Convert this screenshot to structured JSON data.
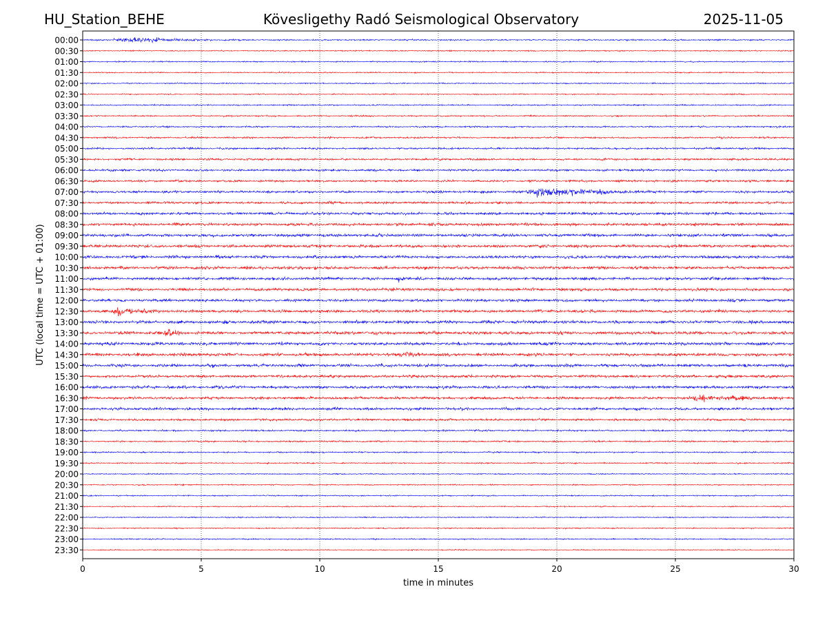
{
  "header": {
    "station": "HU_Station_BEHE",
    "observatory": "Kövesligethy Radó Seismological Observatory",
    "date": "2025-11-05"
  },
  "chart_data": {
    "type": "line",
    "title": "Kövesligethy Radó Seismological Observatory",
    "xlabel": "time in minutes",
    "ylabel": "UTC (local time = UTC + 01:00)",
    "xlim": [
      0,
      30
    ],
    "xticks": [
      0,
      5,
      10,
      15,
      20,
      25,
      30
    ],
    "xtick_labels": [
      "0",
      "5",
      "10",
      "15",
      "20",
      "25",
      "30"
    ],
    "grid": "vertical dotted",
    "row_labels": [
      "00:00",
      "00:30",
      "01:00",
      "01:30",
      "02:00",
      "02:30",
      "03:00",
      "03:30",
      "04:00",
      "04:30",
      "05:00",
      "05:30",
      "06:00",
      "06:30",
      "07:00",
      "07:30",
      "08:00",
      "08:30",
      "09:00",
      "09:30",
      "10:00",
      "10:30",
      "11:00",
      "11:30",
      "12:00",
      "12:30",
      "13:00",
      "13:30",
      "14:00",
      "14:30",
      "15:00",
      "15:30",
      "16:00",
      "16:30",
      "17:00",
      "17:30",
      "18:00",
      "18:30",
      "19:00",
      "19:30",
      "20:00",
      "20:30",
      "21:00",
      "21:30",
      "22:00",
      "22:30",
      "23:00",
      "23:30"
    ],
    "colors": [
      "#0000ff",
      "#ff0000"
    ],
    "noise_levels": [
      1.2,
      1.0,
      1.0,
      1.0,
      1.0,
      1.0,
      1.1,
      1.2,
      1.3,
      1.5,
      1.6,
      1.7,
      1.8,
      1.8,
      2.0,
      2.0,
      2.2,
      2.4,
      2.5,
      2.4,
      2.5,
      2.5,
      2.4,
      2.4,
      2.3,
      2.4,
      2.6,
      2.6,
      2.6,
      2.6,
      2.5,
      2.4,
      2.4,
      2.3,
      2.2,
      1.8,
      1.4,
      1.3,
      1.2,
      1.1,
      1.0,
      1.0,
      1.0,
      1.0,
      1.0,
      1.0,
      1.0,
      0.9
    ],
    "events": [
      {
        "row": "00:00",
        "start_min": 1.2,
        "end_min": 5.5,
        "amplitude": 4.5
      },
      {
        "row": "07:00",
        "start_min": 18.5,
        "end_min": 23.5,
        "amplitude": 8
      },
      {
        "row": "12:30",
        "start_min": 1.2,
        "end_min": 3.0,
        "amplitude": 8
      },
      {
        "row": "13:30",
        "start_min": 3.4,
        "end_min": 4.3,
        "amplitude": 6
      },
      {
        "row": "16:30",
        "start_min": 25.5,
        "end_min": 29.0,
        "amplitude": 4
      },
      {
        "row": "10:30",
        "start_min": 9.75,
        "end_min": 9.9,
        "amplitude": 7
      },
      {
        "row": "11:00",
        "start_min": 13.3,
        "end_min": 13.45,
        "amplitude": 6
      },
      {
        "row": "14:30",
        "start_min": 13.5,
        "end_min": 14.5,
        "amplitude": 4
      }
    ]
  }
}
